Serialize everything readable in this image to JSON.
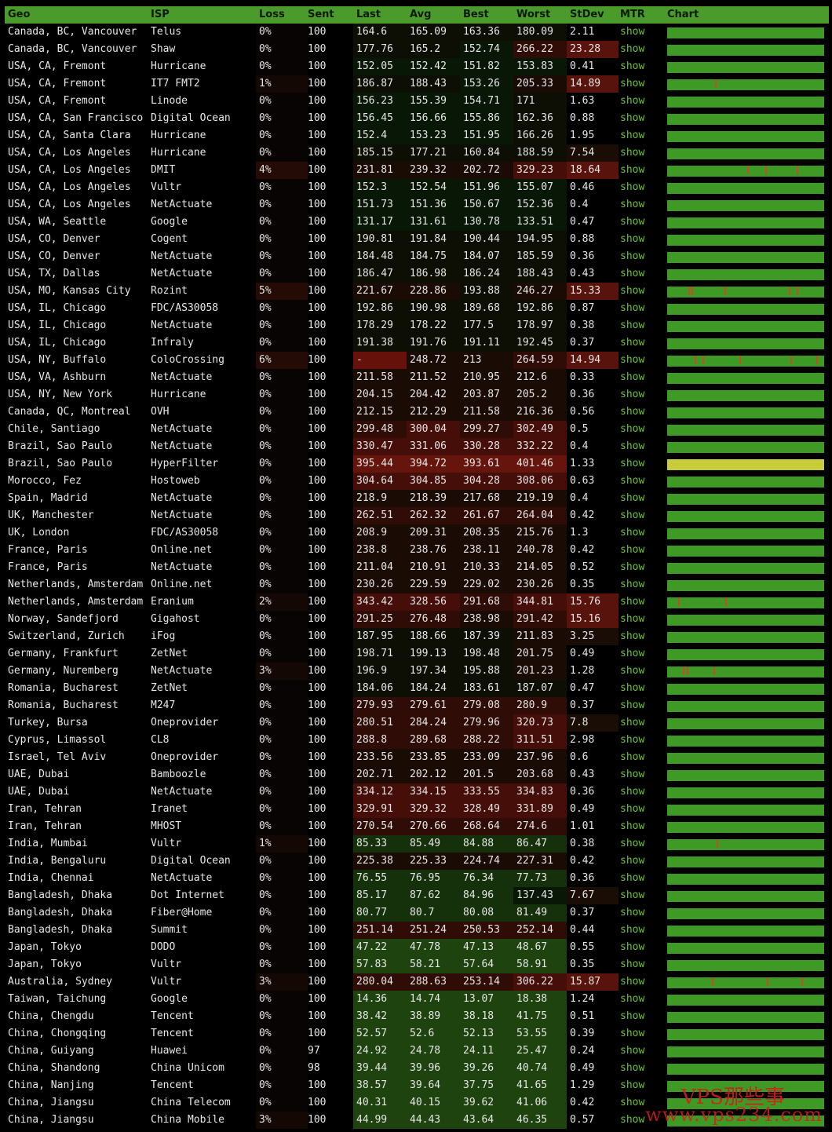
{
  "header": {
    "geo": "Geo",
    "isp": "ISP",
    "loss": "Loss",
    "sent": "Sent",
    "last": "Last",
    "avg": "Avg",
    "best": "Best",
    "worst": "Worst",
    "stdev": "StDev",
    "mtr": "MTR",
    "chart": "Chart"
  },
  "mtr_label": "show",
  "colors": {
    "header_bg": "#4a9a2c",
    "chart_green": "#3f9a25",
    "chart_yellow": "#c9cc3a",
    "spike_red": "#c84a2a",
    "link_green": "#6cc22f"
  },
  "watermark": {
    "brand": "VPS那些事",
    "url": "www.vps234.com"
  },
  "rows": [
    {
      "geo": "Canada, BC, Vancouver",
      "isp": "Telus",
      "loss": "0%",
      "sent": "100",
      "last": "164.6",
      "avg": "165.09",
      "best": "163.36",
      "worst": "180.09",
      "stdev": "2.11",
      "spikes": []
    },
    {
      "geo": "Canada, BC, Vancouver",
      "isp": "Shaw",
      "loss": "0%",
      "sent": "100",
      "last": "177.76",
      "avg": "165.2",
      "best": "152.74",
      "worst": "266.22",
      "stdev": "23.28",
      "spikes": []
    },
    {
      "geo": "USA, CA, Fremont",
      "isp": "Hurricane",
      "loss": "0%",
      "sent": "100",
      "last": "152.05",
      "avg": "152.42",
      "best": "151.82",
      "worst": "153.83",
      "stdev": "0.41",
      "spikes": []
    },
    {
      "geo": "USA, CA, Fremont",
      "isp": "IT7 FMT2",
      "loss": "1%",
      "sent": "100",
      "last": "186.87",
      "avg": "188.43",
      "best": "153.26",
      "worst": "205.33",
      "stdev": "14.89",
      "spikes": [
        0.31
      ]
    },
    {
      "geo": "USA, CA, Fremont",
      "isp": "Linode",
      "loss": "0%",
      "sent": "100",
      "last": "156.23",
      "avg": "155.39",
      "best": "154.71",
      "worst": "171",
      "stdev": "1.63",
      "spikes": []
    },
    {
      "geo": "USA, CA, San Francisco",
      "isp": "Digital Ocean",
      "loss": "0%",
      "sent": "100",
      "last": "156.45",
      "avg": "156.66",
      "best": "155.86",
      "worst": "162.36",
      "stdev": "0.88",
      "spikes": []
    },
    {
      "geo": "USA, CA, Santa Clara",
      "isp": "Hurricane",
      "loss": "0%",
      "sent": "100",
      "last": "152.4",
      "avg": "153.23",
      "best": "151.95",
      "worst": "166.26",
      "stdev": "1.95",
      "spikes": []
    },
    {
      "geo": "USA, CA, Los Angeles",
      "isp": "Hurricane",
      "loss": "0%",
      "sent": "100",
      "last": "185.15",
      "avg": "177.21",
      "best": "160.84",
      "worst": "188.59",
      "stdev": "7.54",
      "spikes": []
    },
    {
      "geo": "USA, CA, Los Angeles",
      "isp": "DMIT",
      "loss": "4%",
      "sent": "100",
      "last": "231.81",
      "avg": "239.32",
      "best": "202.72",
      "worst": "329.23",
      "stdev": "18.64",
      "spikes": [
        0.52,
        0.64,
        0.84
      ]
    },
    {
      "geo": "USA, CA, Los Angeles",
      "isp": "Vultr",
      "loss": "0%",
      "sent": "100",
      "last": "152.3",
      "avg": "152.54",
      "best": "151.96",
      "worst": "155.07",
      "stdev": "0.46",
      "spikes": []
    },
    {
      "geo": "USA, CA, Los Angeles",
      "isp": "NetActuate",
      "loss": "0%",
      "sent": "100",
      "last": "151.73",
      "avg": "151.36",
      "best": "150.67",
      "worst": "152.36",
      "stdev": "0.4",
      "spikes": []
    },
    {
      "geo": "USA, WA, Seattle",
      "isp": "Google",
      "loss": "0%",
      "sent": "100",
      "last": "131.17",
      "avg": "131.61",
      "best": "130.78",
      "worst": "133.51",
      "stdev": "0.47",
      "spikes": []
    },
    {
      "geo": "USA, CO, Denver",
      "isp": "Cogent",
      "loss": "0%",
      "sent": "100",
      "last": "190.81",
      "avg": "191.84",
      "best": "190.44",
      "worst": "194.95",
      "stdev": "0.88",
      "spikes": []
    },
    {
      "geo": "USA, CO, Denver",
      "isp": "NetActuate",
      "loss": "0%",
      "sent": "100",
      "last": "184.48",
      "avg": "184.75",
      "best": "184.07",
      "worst": "185.59",
      "stdev": "0.36",
      "spikes": []
    },
    {
      "geo": "USA, TX, Dallas",
      "isp": "NetActuate",
      "loss": "0%",
      "sent": "100",
      "last": "186.47",
      "avg": "186.98",
      "best": "186.24",
      "worst": "188.43",
      "stdev": "0.43",
      "spikes": []
    },
    {
      "geo": "USA, MO, Kansas City",
      "isp": "Rozint",
      "loss": "5%",
      "sent": "100",
      "last": "221.67",
      "avg": "228.86",
      "best": "193.88",
      "worst": "246.27",
      "stdev": "15.33",
      "spikes": [
        0.14,
        0.16,
        0.37,
        0.79,
        0.84
      ]
    },
    {
      "geo": "USA, IL, Chicago",
      "isp": "FDC/AS30058",
      "loss": "0%",
      "sent": "100",
      "last": "192.86",
      "avg": "190.98",
      "best": "189.68",
      "worst": "192.86",
      "stdev": "0.87",
      "spikes": []
    },
    {
      "geo": "USA, IL, Chicago",
      "isp": "NetActuate",
      "loss": "0%",
      "sent": "100",
      "last": "178.29",
      "avg": "178.22",
      "best": "177.5",
      "worst": "178.97",
      "stdev": "0.38",
      "spikes": []
    },
    {
      "geo": "USA, IL, Chicago",
      "isp": "Infraly",
      "loss": "0%",
      "sent": "100",
      "last": "191.38",
      "avg": "191.76",
      "best": "191.11",
      "worst": "192.45",
      "stdev": "0.37",
      "spikes": []
    },
    {
      "geo": "USA, NY, Buffalo",
      "isp": "ColoCrossing",
      "loss": "6%",
      "sent": "100",
      "last": "-",
      "avg": "248.72",
      "best": "213",
      "worst": "264.59",
      "stdev": "14.94",
      "spikes": [
        0.18,
        0.23,
        0.47,
        0.8,
        0.97
      ]
    },
    {
      "geo": "USA, VA, Ashburn",
      "isp": "NetActuate",
      "loss": "0%",
      "sent": "100",
      "last": "211.58",
      "avg": "211.52",
      "best": "210.95",
      "worst": "212.6",
      "stdev": "0.33",
      "spikes": []
    },
    {
      "geo": "USA, NY, New York",
      "isp": "Hurricane",
      "loss": "0%",
      "sent": "100",
      "last": "204.15",
      "avg": "204.42",
      "best": "203.87",
      "worst": "205.2",
      "stdev": "0.36",
      "spikes": []
    },
    {
      "geo": "Canada, QC, Montreal",
      "isp": "OVH",
      "loss": "0%",
      "sent": "100",
      "last": "212.15",
      "avg": "212.29",
      "best": "211.58",
      "worst": "216.36",
      "stdev": "0.56",
      "spikes": []
    },
    {
      "geo": "Chile, Santiago",
      "isp": "NetActuate",
      "loss": "0%",
      "sent": "100",
      "last": "299.48",
      "avg": "300.04",
      "best": "299.27",
      "worst": "302.49",
      "stdev": "0.5",
      "spikes": []
    },
    {
      "geo": "Brazil, Sao Paulo",
      "isp": "NetActuate",
      "loss": "0%",
      "sent": "100",
      "last": "330.47",
      "avg": "331.06",
      "best": "330.28",
      "worst": "332.22",
      "stdev": "0.4",
      "spikes": []
    },
    {
      "geo": "Brazil, Sao Paulo",
      "isp": "HyperFilter",
      "loss": "0%",
      "sent": "100",
      "last": "395.44",
      "avg": "394.72",
      "best": "393.61",
      "worst": "401.46",
      "stdev": "1.33",
      "spikes": [],
      "yellow": true
    },
    {
      "geo": "Morocco, Fez",
      "isp": "Hostoweb",
      "loss": "0%",
      "sent": "100",
      "last": "304.64",
      "avg": "304.85",
      "best": "304.28",
      "worst": "308.06",
      "stdev": "0.63",
      "spikes": []
    },
    {
      "geo": "Spain, Madrid",
      "isp": "NetActuate",
      "loss": "0%",
      "sent": "100",
      "last": "218.9",
      "avg": "218.39",
      "best": "217.68",
      "worst": "219.19",
      "stdev": "0.4",
      "spikes": []
    },
    {
      "geo": "UK, Manchester",
      "isp": "NetActuate",
      "loss": "0%",
      "sent": "100",
      "last": "262.51",
      "avg": "262.32",
      "best": "261.67",
      "worst": "264.04",
      "stdev": "0.42",
      "spikes": []
    },
    {
      "geo": "UK, London",
      "isp": "FDC/AS30058",
      "loss": "0%",
      "sent": "100",
      "last": "208.9",
      "avg": "209.31",
      "best": "208.35",
      "worst": "215.76",
      "stdev": "1.3",
      "spikes": []
    },
    {
      "geo": "France, Paris",
      "isp": "Online.net",
      "loss": "0%",
      "sent": "100",
      "last": "238.8",
      "avg": "238.76",
      "best": "238.11",
      "worst": "240.78",
      "stdev": "0.42",
      "spikes": []
    },
    {
      "geo": "France, Paris",
      "isp": "NetActuate",
      "loss": "0%",
      "sent": "100",
      "last": "211.04",
      "avg": "210.91",
      "best": "210.33",
      "worst": "214.05",
      "stdev": "0.52",
      "spikes": []
    },
    {
      "geo": "Netherlands, Amsterdam",
      "isp": "Online.net",
      "loss": "0%",
      "sent": "100",
      "last": "230.26",
      "avg": "229.59",
      "best": "229.02",
      "worst": "230.26",
      "stdev": "0.35",
      "spikes": []
    },
    {
      "geo": "Netherlands, Amsterdam",
      "isp": "Eranium",
      "loss": "2%",
      "sent": "100",
      "last": "343.42",
      "avg": "328.56",
      "best": "291.68",
      "worst": "344.81",
      "stdev": "15.76",
      "spikes": [
        0.07,
        0.38
      ]
    },
    {
      "geo": "Norway, Sandefjord",
      "isp": "Gigahost",
      "loss": "0%",
      "sent": "100",
      "last": "291.25",
      "avg": "276.48",
      "best": "238.98",
      "worst": "291.42",
      "stdev": "15.16",
      "spikes": []
    },
    {
      "geo": "Switzerland, Zurich",
      "isp": "iFog",
      "loss": "0%",
      "sent": "100",
      "last": "187.95",
      "avg": "188.66",
      "best": "187.39",
      "worst": "211.83",
      "stdev": "3.25",
      "spikes": []
    },
    {
      "geo": "Germany, Frankfurt",
      "isp": "ZetNet",
      "loss": "0%",
      "sent": "100",
      "last": "198.71",
      "avg": "199.13",
      "best": "198.48",
      "worst": "201.75",
      "stdev": "0.49",
      "spikes": []
    },
    {
      "geo": "Germany, Nuremberg",
      "isp": "NetActuate",
      "loss": "3%",
      "sent": "100",
      "last": "196.9",
      "avg": "197.34",
      "best": "195.88",
      "worst": "201.23",
      "stdev": "1.28",
      "spikes": [
        0.1,
        0.13,
        0.3
      ]
    },
    {
      "geo": "Romania, Bucharest",
      "isp": "ZetNet",
      "loss": "0%",
      "sent": "100",
      "last": "184.06",
      "avg": "184.24",
      "best": "183.61",
      "worst": "187.07",
      "stdev": "0.47",
      "spikes": []
    },
    {
      "geo": "Romania, Bucharest",
      "isp": "M247",
      "loss": "0%",
      "sent": "100",
      "last": "279.93",
      "avg": "279.61",
      "best": "279.08",
      "worst": "280.9",
      "stdev": "0.37",
      "spikes": []
    },
    {
      "geo": "Turkey, Bursa",
      "isp": "Oneprovider",
      "loss": "0%",
      "sent": "100",
      "last": "280.51",
      "avg": "284.24",
      "best": "279.96",
      "worst": "320.73",
      "stdev": "7.8",
      "spikes": []
    },
    {
      "geo": "Cyprus, Limassol",
      "isp": "CL8",
      "loss": "0%",
      "sent": "100",
      "last": "288.8",
      "avg": "289.68",
      "best": "288.22",
      "worst": "311.51",
      "stdev": "2.98",
      "spikes": []
    },
    {
      "geo": "Israel, Tel Aviv",
      "isp": "Oneprovider",
      "loss": "0%",
      "sent": "100",
      "last": "233.56",
      "avg": "233.85",
      "best": "233.09",
      "worst": "237.96",
      "stdev": "0.6",
      "spikes": []
    },
    {
      "geo": "UAE, Dubai",
      "isp": "Bamboozle",
      "loss": "0%",
      "sent": "100",
      "last": "202.71",
      "avg": "202.12",
      "best": "201.5",
      "worst": "203.68",
      "stdev": "0.43",
      "spikes": []
    },
    {
      "geo": "UAE, Dubai",
      "isp": "NetActuate",
      "loss": "0%",
      "sent": "100",
      "last": "334.12",
      "avg": "334.15",
      "best": "333.55",
      "worst": "334.83",
      "stdev": "0.36",
      "spikes": []
    },
    {
      "geo": "Iran, Tehran",
      "isp": "Iranet",
      "loss": "0%",
      "sent": "100",
      "last": "329.91",
      "avg": "329.32",
      "best": "328.49",
      "worst": "331.89",
      "stdev": "0.49",
      "spikes": []
    },
    {
      "geo": "Iran, Tehran",
      "isp": "MHOST",
      "loss": "0%",
      "sent": "100",
      "last": "270.54",
      "avg": "270.66",
      "best": "268.64",
      "worst": "274.6",
      "stdev": "1.01",
      "spikes": []
    },
    {
      "geo": "India, Mumbai",
      "isp": "Vultr",
      "loss": "1%",
      "sent": "100",
      "last": "85.33",
      "avg": "85.49",
      "best": "84.88",
      "worst": "86.47",
      "stdev": "0.38",
      "spikes": [
        0.32
      ]
    },
    {
      "geo": "India, Bengaluru",
      "isp": "Digital Ocean",
      "loss": "0%",
      "sent": "100",
      "last": "225.38",
      "avg": "225.33",
      "best": "224.74",
      "worst": "227.31",
      "stdev": "0.42",
      "spikes": []
    },
    {
      "geo": "India, Chennai",
      "isp": "NetActuate",
      "loss": "0%",
      "sent": "100",
      "last": "76.55",
      "avg": "76.95",
      "best": "76.34",
      "worst": "77.73",
      "stdev": "0.36",
      "spikes": []
    },
    {
      "geo": "Bangladesh, Dhaka",
      "isp": "Dot Internet",
      "loss": "0%",
      "sent": "100",
      "last": "85.17",
      "avg": "87.62",
      "best": "84.96",
      "worst": "137.43",
      "stdev": "7.67",
      "spikes": []
    },
    {
      "geo": "Bangladesh, Dhaka",
      "isp": "Fiber@Home",
      "loss": "0%",
      "sent": "100",
      "last": "80.77",
      "avg": "80.7",
      "best": "80.08",
      "worst": "81.49",
      "stdev": "0.37",
      "spikes": []
    },
    {
      "geo": "Bangladesh, Dhaka",
      "isp": "Summit",
      "loss": "0%",
      "sent": "100",
      "last": "251.14",
      "avg": "251.24",
      "best": "250.53",
      "worst": "252.14",
      "stdev": "0.44",
      "spikes": []
    },
    {
      "geo": "Japan, Tokyo",
      "isp": "DODO",
      "loss": "0%",
      "sent": "100",
      "last": "47.22",
      "avg": "47.78",
      "best": "47.13",
      "worst": "48.67",
      "stdev": "0.55",
      "spikes": []
    },
    {
      "geo": "Japan, Tokyo",
      "isp": "Vultr",
      "loss": "0%",
      "sent": "100",
      "last": "57.83",
      "avg": "58.21",
      "best": "57.64",
      "worst": "58.91",
      "stdev": "0.35",
      "spikes": []
    },
    {
      "geo": "Australia, Sydney",
      "isp": "Vultr",
      "loss": "3%",
      "sent": "100",
      "last": "280.04",
      "avg": "288.63",
      "best": "253.14",
      "worst": "306.22",
      "stdev": "15.87",
      "spikes": [
        0.29,
        0.65,
        0.87
      ]
    },
    {
      "geo": "Taiwan, Taichung",
      "isp": "Google",
      "loss": "0%",
      "sent": "100",
      "last": "14.36",
      "avg": "14.74",
      "best": "13.07",
      "worst": "18.38",
      "stdev": "1.24",
      "spikes": []
    },
    {
      "geo": "China, Chengdu",
      "isp": "Tencent",
      "loss": "0%",
      "sent": "100",
      "last": "38.42",
      "avg": "38.89",
      "best": "38.18",
      "worst": "41.75",
      "stdev": "0.51",
      "spikes": []
    },
    {
      "geo": "China, Chongqing",
      "isp": "Tencent",
      "loss": "0%",
      "sent": "100",
      "last": "52.57",
      "avg": "52.6",
      "best": "52.13",
      "worst": "53.55",
      "stdev": "0.39",
      "spikes": []
    },
    {
      "geo": "China, Guiyang",
      "isp": "Huawei",
      "loss": "0%",
      "sent": "97",
      "last": "24.92",
      "avg": "24.78",
      "best": "24.11",
      "worst": "25.47",
      "stdev": "0.24",
      "spikes": []
    },
    {
      "geo": "China, Shandong",
      "isp": "China Unicom",
      "loss": "0%",
      "sent": "98",
      "last": "39.44",
      "avg": "39.96",
      "best": "39.26",
      "worst": "40.74",
      "stdev": "0.49",
      "spikes": []
    },
    {
      "geo": "China, Nanjing",
      "isp": "Tencent",
      "loss": "0%",
      "sent": "100",
      "last": "38.57",
      "avg": "39.64",
      "best": "37.75",
      "worst": "41.65",
      "stdev": "1.29",
      "spikes": []
    },
    {
      "geo": "China, Jiangsu",
      "isp": "China Telecom",
      "loss": "0%",
      "sent": "100",
      "last": "40.31",
      "avg": "40.15",
      "best": "39.62",
      "worst": "41.06",
      "stdev": "0.42",
      "spikes": []
    },
    {
      "geo": "China, Jiangsu",
      "isp": "China Mobile",
      "loss": "3%",
      "sent": "100",
      "last": "44.99",
      "avg": "44.43",
      "best": "43.64",
      "worst": "46.35",
      "stdev": "0.57",
      "spikes": []
    }
  ]
}
